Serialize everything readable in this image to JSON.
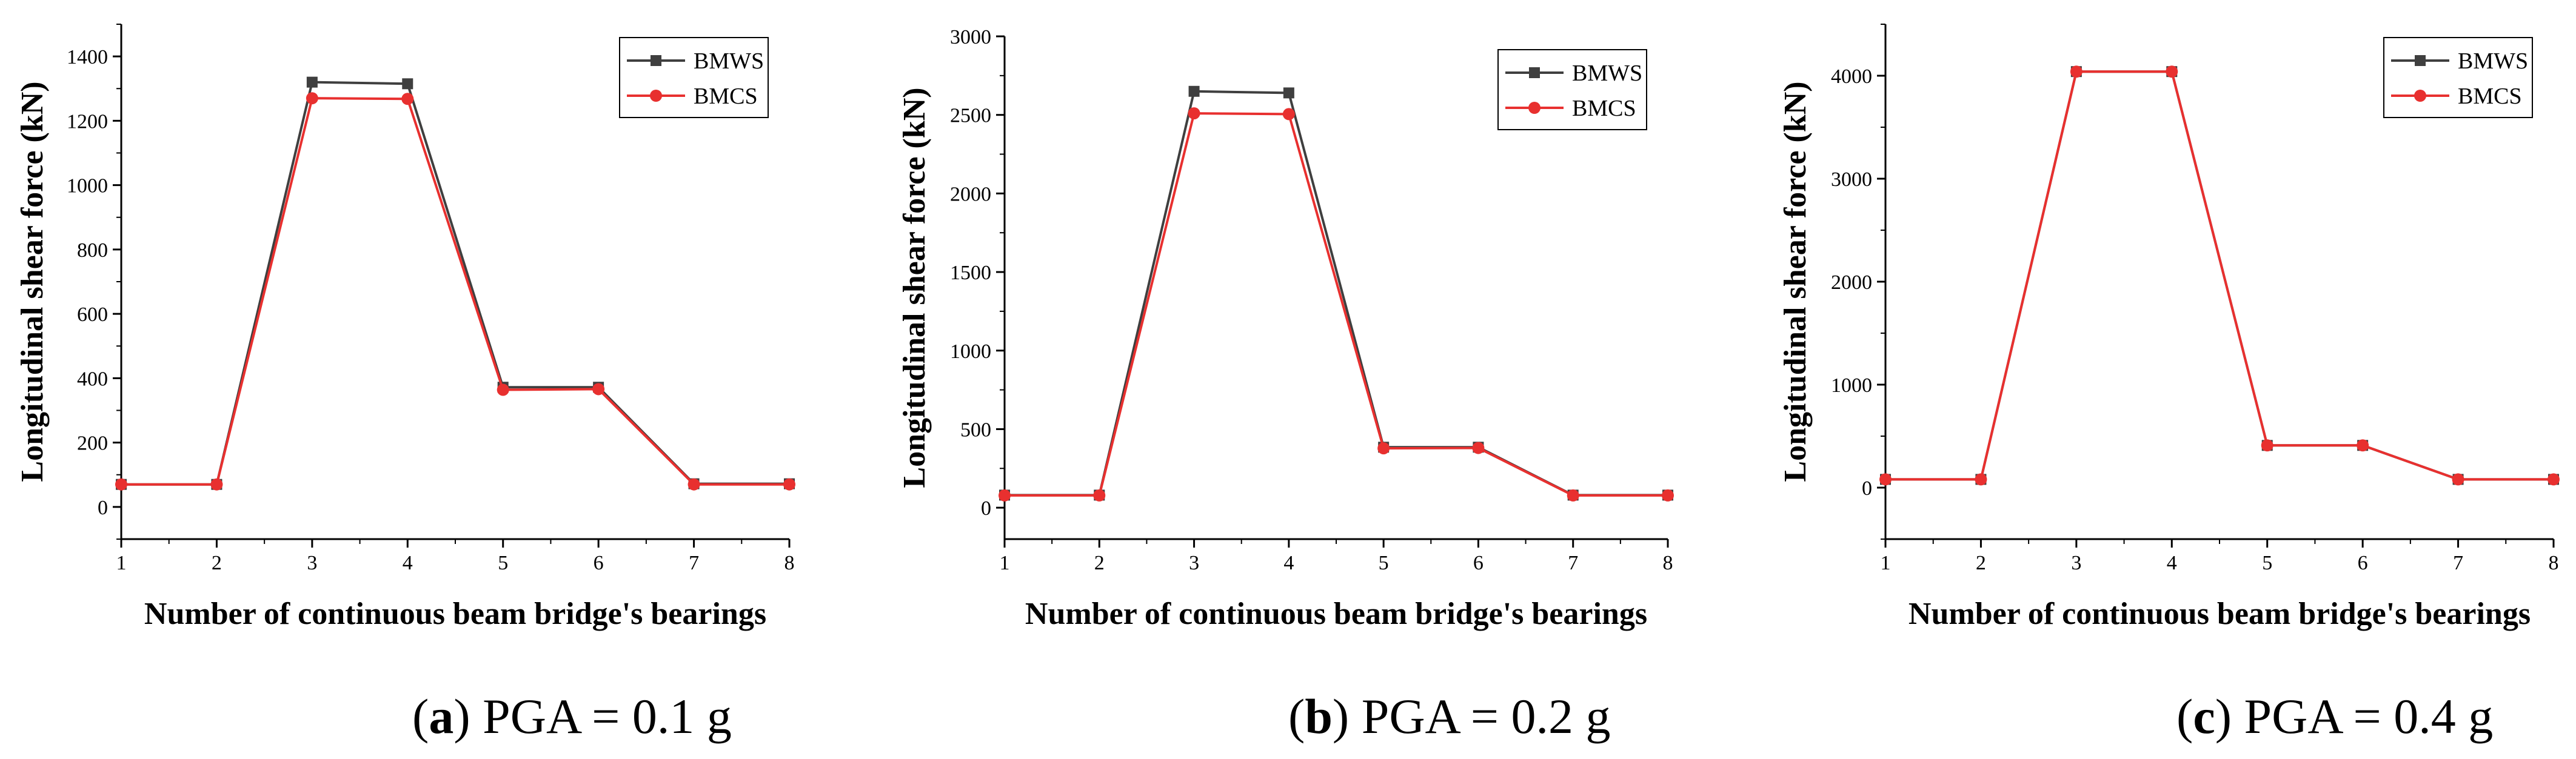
{
  "colors": {
    "series_1": "#3f3f3f",
    "series_2": "#e8302f",
    "axis": "#000000"
  },
  "chart_data": [
    {
      "type": "line",
      "caption": {
        "letter": "a",
        "text": ") PGA = 0.1 g"
      },
      "xlabel": "Number of continuous beam bridge's bearings",
      "ylabel": "Longitudinal shear force (kN)",
      "x": [
        1,
        2,
        3,
        4,
        5,
        6,
        7,
        8
      ],
      "xticks": [
        1,
        2,
        3,
        4,
        5,
        6,
        7,
        8
      ],
      "yticks": [
        0,
        200,
        400,
        600,
        800,
        1000,
        1200,
        1400
      ],
      "xlim": [
        1,
        8
      ],
      "ylim": [
        -100,
        1500
      ],
      "legend": "top-right",
      "series": [
        {
          "name": "BMWS",
          "marker": "square",
          "values": [
            70,
            70,
            1320,
            1315,
            372,
            372,
            72,
            72
          ]
        },
        {
          "name": "BMCS",
          "marker": "circle",
          "values": [
            70,
            70,
            1270,
            1268,
            364,
            366,
            70,
            70
          ]
        }
      ]
    },
    {
      "type": "line",
      "caption": {
        "letter": "b",
        "text": ") PGA = 0.2 g"
      },
      "xlabel": "Number of continuous beam bridge's bearings",
      "ylabel": "Longitudinal shear force (kN)",
      "x": [
        1,
        2,
        3,
        4,
        5,
        6,
        7,
        8
      ],
      "xticks": [
        1,
        2,
        3,
        4,
        5,
        6,
        7,
        8
      ],
      "yticks": [
        0,
        500,
        1000,
        1500,
        2000,
        2500,
        3000
      ],
      "xlim": [
        1,
        8
      ],
      "ylim": [
        -200,
        3000
      ],
      "legend": "top-right",
      "series": [
        {
          "name": "BMWS",
          "marker": "square",
          "values": [
            80,
            80,
            2650,
            2640,
            385,
            385,
            80,
            80
          ]
        },
        {
          "name": "BMCS",
          "marker": "circle",
          "values": [
            78,
            78,
            2510,
            2505,
            378,
            380,
            78,
            78
          ]
        }
      ]
    },
    {
      "type": "line",
      "caption": {
        "letter": "c",
        "text": ") PGA = 0.4 g"
      },
      "xlabel": "Number of continuous beam bridge's bearings",
      "ylabel": "Longitudinal shear force (kN)",
      "x": [
        1,
        2,
        3,
        4,
        5,
        6,
        7,
        8
      ],
      "xticks": [
        1,
        2,
        3,
        4,
        5,
        6,
        7,
        8
      ],
      "yticks": [
        0,
        1000,
        2000,
        3000,
        4000
      ],
      "xlim": [
        1,
        8
      ],
      "ylim": [
        -500,
        4500
      ],
      "legend": "top-right",
      "series": [
        {
          "name": "BMWS",
          "marker": "square",
          "values": [
            80,
            80,
            4040,
            4040,
            410,
            410,
            80,
            80
          ]
        },
        {
          "name": "BMCS",
          "marker": "circle",
          "values": [
            80,
            80,
            4040,
            4040,
            410,
            410,
            80,
            80
          ]
        }
      ]
    }
  ]
}
